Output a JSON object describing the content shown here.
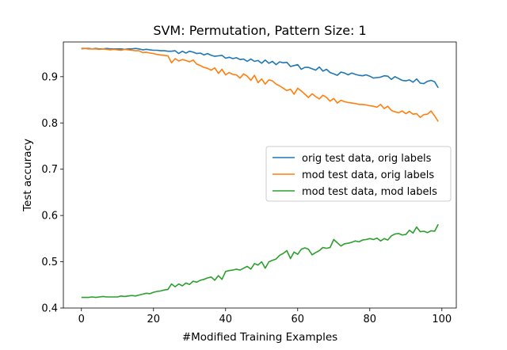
{
  "chart_data": {
    "type": "line",
    "title": "SVM: Permutation, Pattern Size: 1",
    "xlabel": "#Modified Training Examples",
    "ylabel": "Test accuracy",
    "xlim": [
      -5,
      104
    ],
    "ylim": [
      0.4,
      0.975
    ],
    "xticks": [
      "0",
      "20",
      "40",
      "60",
      "80",
      "100"
    ],
    "yticks": [
      "0.4",
      "0.5",
      "0.6",
      "0.7",
      "0.8",
      "0.9"
    ],
    "grid": false,
    "legend_position": "center-right",
    "x": [
      0,
      1,
      2,
      3,
      4,
      5,
      6,
      7,
      8,
      9,
      10,
      11,
      12,
      13,
      14,
      15,
      16,
      17,
      18,
      19,
      20,
      21,
      22,
      23,
      24,
      25,
      26,
      27,
      28,
      29,
      30,
      31,
      32,
      33,
      34,
      35,
      36,
      37,
      38,
      39,
      40,
      41,
      42,
      43,
      44,
      45,
      46,
      47,
      48,
      49,
      50,
      51,
      52,
      53,
      54,
      55,
      56,
      57,
      58,
      59,
      60,
      61,
      62,
      63,
      64,
      65,
      66,
      67,
      68,
      69,
      70,
      71,
      72,
      73,
      74,
      75,
      76,
      77,
      78,
      79,
      80,
      81,
      82,
      83,
      84,
      85,
      86,
      87,
      88,
      89,
      90,
      91,
      92,
      93,
      94,
      95,
      96,
      97,
      98,
      99
    ],
    "series": [
      {
        "name": "orig test data, orig labels",
        "color": "#1f77b4",
        "values": [
          0.961,
          0.961,
          0.961,
          0.96,
          0.961,
          0.96,
          0.96,
          0.961,
          0.96,
          0.96,
          0.96,
          0.96,
          0.959,
          0.96,
          0.96,
          0.961,
          0.96,
          0.958,
          0.959,
          0.958,
          0.957,
          0.957,
          0.956,
          0.956,
          0.955,
          0.955,
          0.956,
          0.95,
          0.955,
          0.951,
          0.955,
          0.953,
          0.95,
          0.951,
          0.947,
          0.95,
          0.946,
          0.944,
          0.945,
          0.946,
          0.94,
          0.942,
          0.939,
          0.941,
          0.937,
          0.938,
          0.933,
          0.938,
          0.933,
          0.935,
          0.929,
          0.936,
          0.929,
          0.933,
          0.926,
          0.932,
          0.93,
          0.931,
          0.922,
          0.924,
          0.926,
          0.916,
          0.92,
          0.92,
          0.917,
          0.914,
          0.921,
          0.912,
          0.916,
          0.909,
          0.906,
          0.903,
          0.91,
          0.908,
          0.904,
          0.908,
          0.905,
          0.903,
          0.902,
          0.904,
          0.901,
          0.897,
          0.898,
          0.899,
          0.902,
          0.901,
          0.894,
          0.9,
          0.896,
          0.892,
          0.891,
          0.893,
          0.888,
          0.895,
          0.886,
          0.885,
          0.89,
          0.892,
          0.889,
          0.876
        ]
      },
      {
        "name": "mod test data, orig labels",
        "color": "#ff7f0e",
        "values": [
          0.96,
          0.961,
          0.96,
          0.96,
          0.96,
          0.959,
          0.96,
          0.959,
          0.958,
          0.959,
          0.958,
          0.957,
          0.959,
          0.958,
          0.957,
          0.956,
          0.956,
          0.952,
          0.953,
          0.951,
          0.95,
          0.948,
          0.947,
          0.946,
          0.945,
          0.93,
          0.939,
          0.934,
          0.937,
          0.935,
          0.932,
          0.936,
          0.927,
          0.924,
          0.92,
          0.918,
          0.914,
          0.919,
          0.907,
          0.916,
          0.904,
          0.909,
          0.905,
          0.904,
          0.897,
          0.906,
          0.901,
          0.892,
          0.903,
          0.887,
          0.895,
          0.884,
          0.893,
          0.891,
          0.884,
          0.88,
          0.875,
          0.87,
          0.873,
          0.862,
          0.875,
          0.869,
          0.862,
          0.855,
          0.863,
          0.857,
          0.852,
          0.86,
          0.855,
          0.847,
          0.853,
          0.843,
          0.849,
          0.846,
          0.844,
          0.843,
          0.842,
          0.84,
          0.84,
          0.839,
          0.837,
          0.836,
          0.834,
          0.84,
          0.831,
          0.836,
          0.827,
          0.824,
          0.822,
          0.826,
          0.82,
          0.825,
          0.819,
          0.82,
          0.812,
          0.818,
          0.819,
          0.826,
          0.815,
          0.803
        ]
      },
      {
        "name": "mod test data, mod labels",
        "color": "#2ca02c",
        "values": [
          0.423,
          0.423,
          0.423,
          0.424,
          0.423,
          0.424,
          0.425,
          0.424,
          0.424,
          0.424,
          0.424,
          0.426,
          0.425,
          0.426,
          0.427,
          0.426,
          0.428,
          0.43,
          0.432,
          0.431,
          0.434,
          0.436,
          0.437,
          0.439,
          0.44,
          0.452,
          0.446,
          0.452,
          0.448,
          0.454,
          0.451,
          0.458,
          0.456,
          0.46,
          0.462,
          0.465,
          0.467,
          0.46,
          0.47,
          0.462,
          0.479,
          0.481,
          0.482,
          0.484,
          0.482,
          0.486,
          0.49,
          0.484,
          0.496,
          0.493,
          0.5,
          0.486,
          0.5,
          0.503,
          0.506,
          0.514,
          0.518,
          0.524,
          0.507,
          0.521,
          0.516,
          0.527,
          0.53,
          0.527,
          0.515,
          0.52,
          0.524,
          0.531,
          0.529,
          0.531,
          0.548,
          0.541,
          0.534,
          0.539,
          0.54,
          0.542,
          0.545,
          0.543,
          0.547,
          0.548,
          0.55,
          0.548,
          0.551,
          0.545,
          0.55,
          0.547,
          0.556,
          0.56,
          0.561,
          0.558,
          0.559,
          0.568,
          0.562,
          0.575,
          0.565,
          0.566,
          0.563,
          0.567,
          0.566,
          0.581
        ]
      }
    ]
  }
}
